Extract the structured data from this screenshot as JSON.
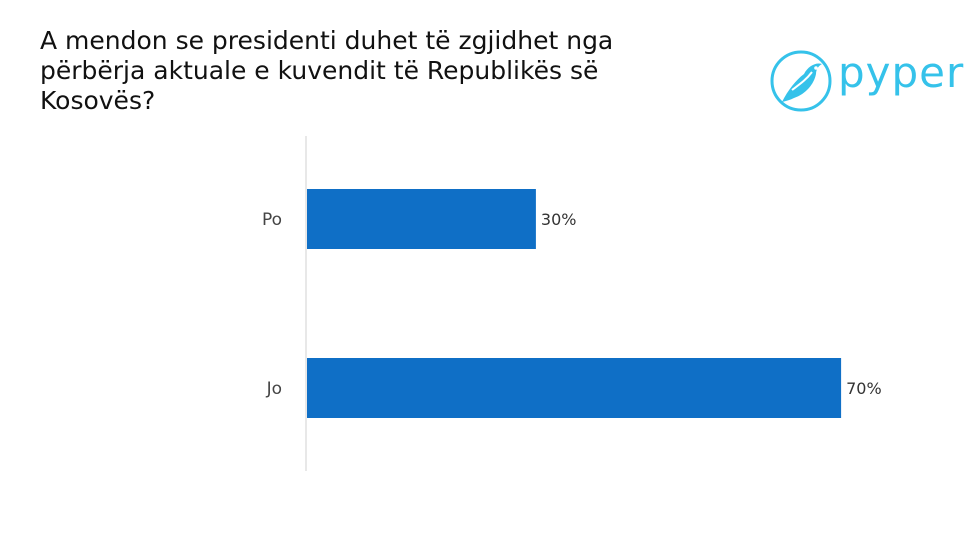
{
  "title": "A mendon se presidenti duhet të zgjidhet nga përbërja aktuale e kuvendit të Republikës së Kosovës?",
  "brand": {
    "name": "pyper",
    "icon": "bird-icon",
    "color": "#35c2ea"
  },
  "chart_data": {
    "type": "bar",
    "orientation": "horizontal",
    "categories": [
      "Po",
      "Jo"
    ],
    "values": [
      30,
      70
    ],
    "value_labels": [
      "30%",
      "70%"
    ],
    "xlim": [
      0,
      100
    ],
    "bar_color": "#0f6fc6",
    "grid": false,
    "legend": "none"
  }
}
